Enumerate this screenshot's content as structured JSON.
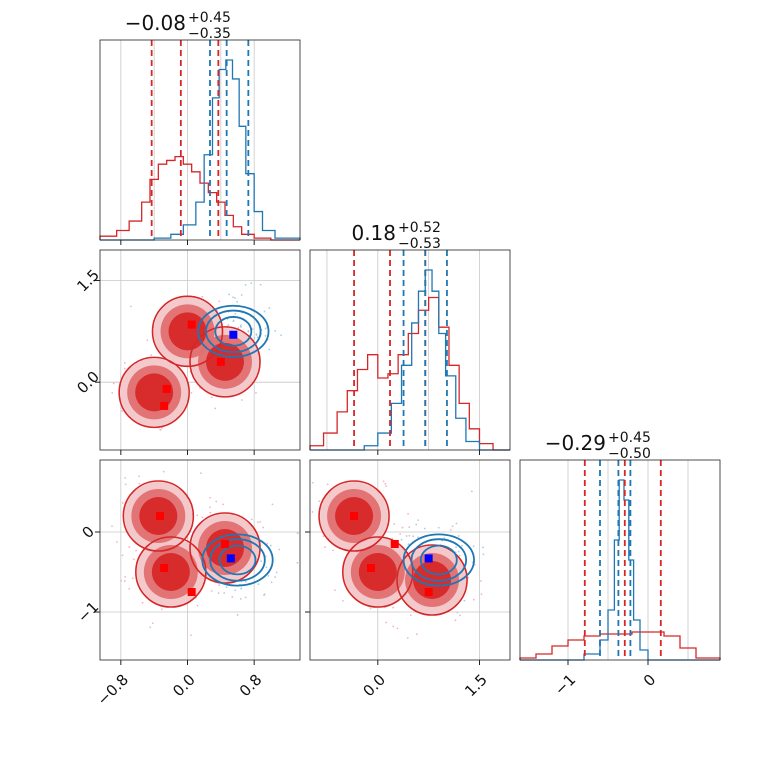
{
  "colors": {
    "red": "#d62728",
    "red_mid": "#e07070",
    "red_light": "#f3c6c8",
    "blue": "#1f77b4",
    "marker_red": "#ff0000",
    "marker_blue": "#0000ff",
    "grid": "#c8c8c8",
    "red_scatter": "#f6b3c8",
    "blue_scatter": "#a9cde8"
  },
  "titles": [
    {
      "value": "−0.08",
      "plus": "+0.45",
      "minus": "−0.35"
    },
    {
      "value": "0.18",
      "plus": "+0.52",
      "minus": "−0.53"
    },
    {
      "value": "−0.29",
      "plus": "+0.45",
      "minus": "−0.50"
    }
  ],
  "tick_labels": {
    "col0": [
      "−0.8",
      "0.0",
      "0.8"
    ],
    "col1": [
      "0.0",
      "1.5"
    ],
    "col2": [
      "−1",
      "0"
    ],
    "row1": [
      "1.5",
      "0.0"
    ],
    "row2": [
      "0",
      "−1"
    ]
  },
  "chart_data": {
    "type": "corner",
    "parameters": [
      "param0",
      "param1",
      "param2"
    ],
    "ranges": [
      [
        -1.05,
        1.35
      ],
      [
        -1.0,
        1.95
      ],
      [
        -1.6,
        0.9
      ]
    ],
    "ticks": [
      [
        -0.8,
        0.0,
        0.8
      ],
      [
        0.0,
        1.5
      ],
      [
        -1,
        0
      ]
    ],
    "gridlines": [
      [
        -0.4,
        0.4
      ],
      [
        -0.75,
        0.75
      ],
      [
        -0.5,
        0.5
      ]
    ],
    "grid": true,
    "marginals": [
      {
        "param": "param0",
        "series": [
          {
            "name": "red",
            "bins": [
              -1.05,
              -0.85,
              -0.7,
              -0.55,
              -0.45,
              -0.35,
              -0.25,
              -0.15,
              -0.05,
              0.05,
              0.15,
              0.25,
              0.35,
              0.45,
              0.55,
              0.65,
              0.8,
              1.0,
              1.35
            ],
            "counts": [
              0.02,
              0.05,
              0.1,
              0.2,
              0.32,
              0.4,
              0.42,
              0.44,
              0.4,
              0.36,
              0.3,
              0.25,
              0.2,
              0.13,
              0.07,
              0.03,
              0.01,
              0.0
            ]
          },
          {
            "name": "blue",
            "bins": [
              -1.05,
              -0.4,
              -0.2,
              -0.05,
              0.1,
              0.2,
              0.3,
              0.38,
              0.46,
              0.54,
              0.62,
              0.7,
              0.8,
              0.9,
              1.05,
              1.35
            ],
            "counts": [
              0.0,
              0.01,
              0.03,
              0.08,
              0.2,
              0.45,
              0.75,
              0.9,
              0.95,
              0.85,
              0.6,
              0.35,
              0.15,
              0.05,
              0.01
            ]
          }
        ],
        "quantiles": {
          "red": [
            -0.43,
            -0.08,
            0.37
          ],
          "blue": [
            0.27,
            0.47,
            0.73
          ]
        }
      },
      {
        "param": "param1",
        "series": [
          {
            "name": "red",
            "bins": [
              -1.0,
              -0.8,
              -0.6,
              -0.45,
              -0.3,
              -0.15,
              0.0,
              0.15,
              0.3,
              0.45,
              0.6,
              0.75,
              0.9,
              1.05,
              1.2,
              1.35,
              1.5,
              1.7,
              1.95
            ],
            "counts": [
              0.02,
              0.08,
              0.18,
              0.28,
              0.38,
              0.45,
              0.34,
              0.36,
              0.45,
              0.55,
              0.66,
              0.72,
              0.58,
              0.4,
              0.22,
              0.1,
              0.03,
              0.0
            ]
          },
          {
            "name": "blue",
            "bins": [
              -1.0,
              -0.2,
              0.0,
              0.2,
              0.35,
              0.5,
              0.6,
              0.7,
              0.8,
              0.9,
              1.0,
              1.15,
              1.3,
              1.5,
              1.95
            ],
            "counts": [
              0.0,
              0.02,
              0.08,
              0.22,
              0.4,
              0.6,
              0.75,
              0.85,
              0.75,
              0.55,
              0.35,
              0.15,
              0.04,
              0.0
            ]
          }
        ],
        "quantiles": {
          "red": [
            -0.35,
            0.18,
            0.7
          ],
          "blue": [
            0.38,
            0.7,
            1.02
          ]
        }
      },
      {
        "param": "param2",
        "series": [
          {
            "name": "red",
            "bins": [
              -1.6,
              -1.4,
              -1.2,
              -1.0,
              -0.8,
              -0.6,
              -0.4,
              -0.2,
              0.0,
              0.2,
              0.4,
              0.6,
              0.9
            ],
            "counts": [
              0.01,
              0.03,
              0.07,
              0.1,
              0.12,
              0.13,
              0.13,
              0.14,
              0.14,
              0.12,
              0.06,
              0.01
            ]
          },
          {
            "name": "blue",
            "bins": [
              -1.6,
              -0.8,
              -0.6,
              -0.5,
              -0.42,
              -0.36,
              -0.3,
              -0.24,
              -0.18,
              -0.1,
              0.0,
              0.9
            ],
            "counts": [
              0.0,
              0.03,
              0.1,
              0.25,
              0.6,
              0.9,
              0.8,
              0.5,
              0.2,
              0.05,
              0.0
            ]
          }
        ],
        "quantiles": {
          "red": [
            -0.79,
            -0.29,
            0.16
          ],
          "blue": [
            -0.6,
            -0.37,
            -0.22
          ]
        }
      }
    ],
    "joints": [
      {
        "x_param": "param0",
        "y_param": "param1",
        "red_clusters": [
          [
            -0.4,
            -0.15
          ],
          [
            0.0,
            0.75
          ],
          [
            0.45,
            0.3
          ]
        ],
        "blue_center": [
          0.55,
          0.75
        ],
        "red_markers": [
          [
            -0.25,
            -0.1
          ],
          [
            -0.28,
            -0.35
          ],
          [
            0.05,
            0.85
          ],
          [
            0.4,
            0.3
          ]
        ],
        "blue_marker": [
          0.55,
          0.7
        ]
      },
      {
        "x_param": "param0",
        "y_param": "param2",
        "red_clusters": [
          [
            -0.35,
            0.2
          ],
          [
            -0.2,
            -0.5
          ],
          [
            0.45,
            -0.2
          ]
        ],
        "blue_center": [
          0.6,
          -0.35
        ],
        "red_markers": [
          [
            -0.33,
            0.2
          ],
          [
            -0.28,
            -0.45
          ],
          [
            0.05,
            -0.75
          ],
          [
            0.45,
            -0.15
          ]
        ],
        "blue_marker": [
          0.52,
          -0.33
        ]
      },
      {
        "x_param": "param1",
        "y_param": "param2",
        "red_clusters": [
          [
            -0.35,
            0.2
          ],
          [
            0.0,
            -0.5
          ],
          [
            0.8,
            -0.6
          ]
        ],
        "blue_center": [
          0.9,
          -0.35
        ],
        "red_markers": [
          [
            -0.35,
            0.2
          ],
          [
            -0.1,
            -0.45
          ],
          [
            0.25,
            -0.15
          ],
          [
            0.75,
            -0.75
          ]
        ],
        "blue_marker": [
          0.75,
          -0.33
        ]
      }
    ]
  }
}
